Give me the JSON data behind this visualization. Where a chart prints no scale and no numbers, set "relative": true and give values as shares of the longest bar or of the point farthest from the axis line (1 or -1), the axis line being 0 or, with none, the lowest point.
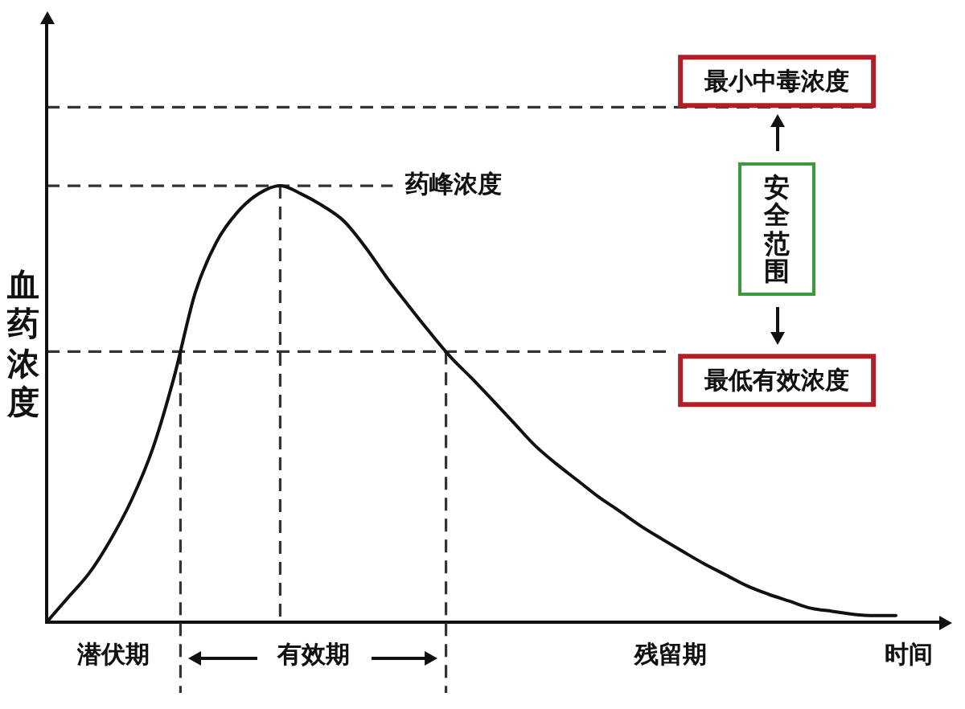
{
  "chart_data": {
    "type": "line",
    "relative": true,
    "xlabel": "时间",
    "ylabel": "血药浓度",
    "tick_labels": false,
    "grid": false,
    "marker": "none",
    "line_style": "solid",
    "categories": [
      null,
      null,
      null,
      null,
      null,
      null,
      null,
      null,
      null,
      null,
      null,
      null,
      null,
      null,
      null,
      null,
      null,
      null,
      null,
      null,
      null,
      null,
      null,
      null,
      null,
      null,
      null,
      null,
      null,
      null,
      null,
      null,
      null,
      null,
      null,
      null,
      null,
      null,
      null,
      null,
      null
    ],
    "series": [
      {
        "color": "#111111",
        "values": [
          0,
          0.056,
          0.112,
          0.188,
          0.28,
          0.398,
          0.561,
          0.755,
          0.871,
          0.94,
          0.982,
          1,
          0.981,
          0.954,
          0.919,
          0.86,
          0.791,
          0.728,
          0.667,
          0.609,
          0.56,
          0.509,
          0.457,
          0.405,
          0.363,
          0.325,
          0.287,
          0.254,
          0.22,
          0.19,
          0.161,
          0.133,
          0.108,
          0.083,
          0.064,
          0.048,
          0.032,
          0.025,
          0.018,
          0.015,
          0.015
        ]
      }
    ],
    "ref_lines": [
      {
        "axis": "y",
        "value": 1.18,
        "label": "最小中毒浓度",
        "line_style": "dashed"
      },
      {
        "axis": "y",
        "value": 1,
        "label": "药峰浓度",
        "line_style": "dashed"
      },
      {
        "axis": "y",
        "value": 0.62,
        "label": "最低有效浓度",
        "line_style": "dashed"
      }
    ],
    "annotations": [
      "潜伏期",
      "有效期",
      "残留期",
      "安全范围"
    ]
  }
}
